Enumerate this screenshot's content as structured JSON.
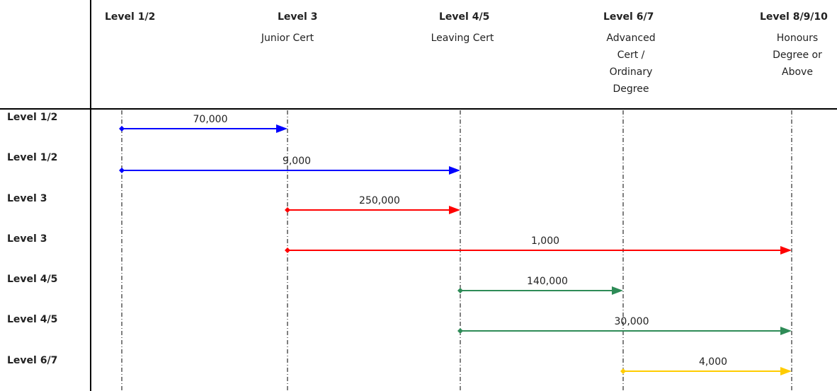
{
  "columns": [
    {
      "header": "Level 1/2",
      "subtitle": ""
    },
    {
      "header": "Level 3",
      "subtitle": "Junior Cert"
    },
    {
      "header": "Level 4/5",
      "subtitle": "Leaving Cert"
    },
    {
      "header": "Level 6/7",
      "subtitle": "Advanced\nCert /\nOrdinary\nDegree"
    },
    {
      "header": "Level 8/9/10",
      "subtitle": "Honours\nDegree or\nAbove"
    }
  ],
  "flows": [
    {
      "from_label": "Level 1/2",
      "from": 0,
      "to": 1,
      "value": "70,000",
      "color": "#0000FF"
    },
    {
      "from_label": "Level 1/2",
      "from": 0,
      "to": 2,
      "value": "9,000",
      "color": "#0000FF"
    },
    {
      "from_label": "Level 3",
      "from": 1,
      "to": 2,
      "value": "250,000",
      "color": "#FF0000"
    },
    {
      "from_label": "Level 3",
      "from": 1,
      "to": 4,
      "value": "1,000",
      "color": "#FF0000"
    },
    {
      "from_label": "Level 4/5",
      "from": 2,
      "to": 3,
      "value": "140,000",
      "color": "#2E8B57"
    },
    {
      "from_label": "Level 4/5",
      "from": 2,
      "to": 4,
      "value": "30,000",
      "color": "#2E8B57"
    },
    {
      "from_label": "Level 6/7",
      "from": 3,
      "to": 4,
      "value": "4,000",
      "color": "#FFCC00"
    }
  ]
}
